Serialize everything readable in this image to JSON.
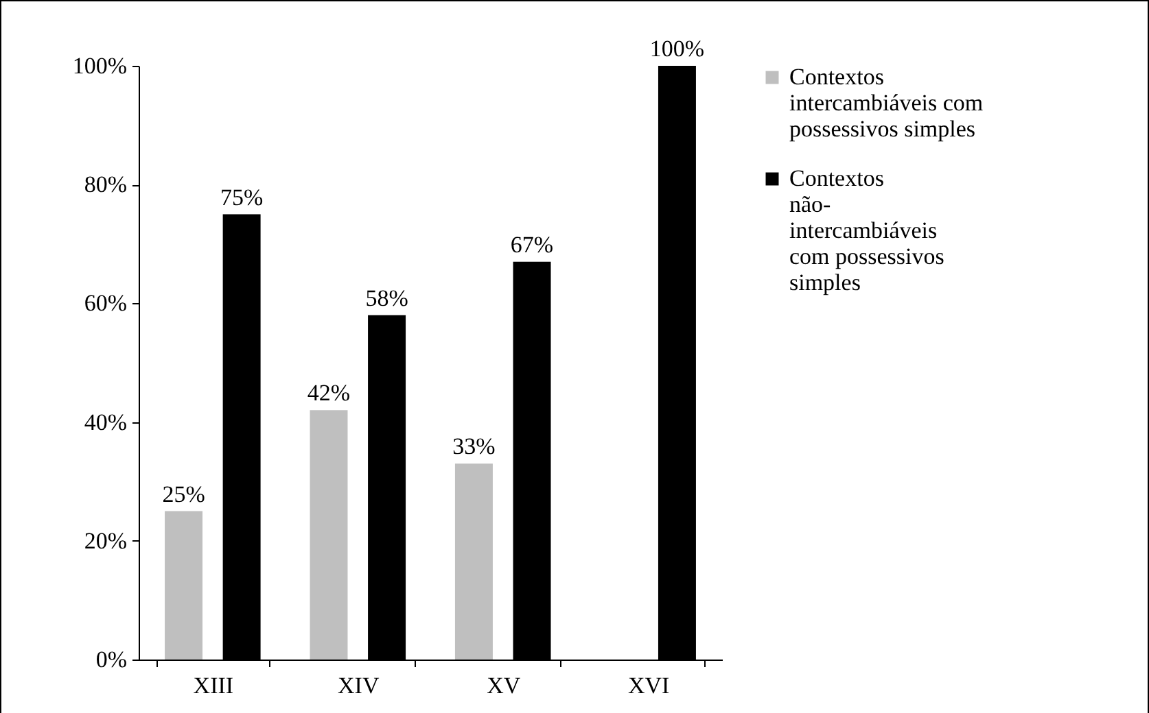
{
  "chart_data": {
    "type": "bar",
    "categories": [
      "XIII",
      "XIV",
      "XV",
      "XVI"
    ],
    "series": [
      {
        "name": "Contextos intercambiáveis com possessivos simples",
        "color": "#bfbfbf",
        "values": [
          25,
          42,
          33,
          null
        ],
        "value_labels": [
          "25%",
          "42%",
          "33%",
          null
        ]
      },
      {
        "name": "Contextos não-intercambiáveis com possessivos simples",
        "color": "#000000",
        "values": [
          75,
          58,
          67,
          100
        ],
        "value_labels": [
          "75%",
          "58%",
          "67%",
          "100%"
        ]
      }
    ],
    "ylim": [
      0,
      100
    ],
    "yticks": [
      {
        "value": 0,
        "label": "0%"
      },
      {
        "value": 20,
        "label": "20%"
      },
      {
        "value": 40,
        "label": "40%"
      },
      {
        "value": 60,
        "label": "60%"
      },
      {
        "value": 80,
        "label": "80%"
      },
      {
        "value": 100,
        "label": "100%"
      }
    ],
    "grid": false,
    "legend": "right"
  }
}
